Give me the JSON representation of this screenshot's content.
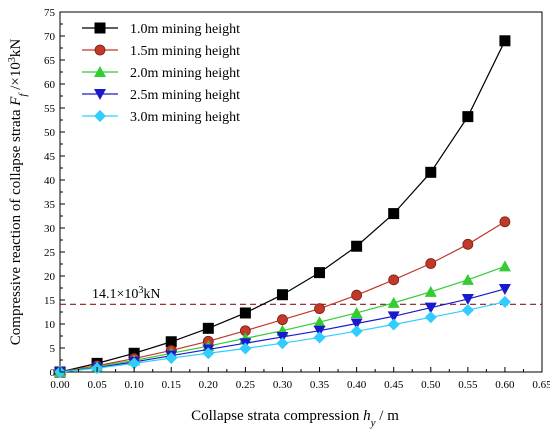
{
  "chart_data": {
    "type": "line",
    "xlabel": {
      "prefix": "Collapse strata compression ",
      "sym": "h",
      "sub": "y",
      "suffix": " / m"
    },
    "ylabel": {
      "prefix": "Compressive reaction of collapse strata ",
      "sym": "F",
      "sub": "f",
      "suffix": " /×10",
      "sup": "3",
      "tail": "kN"
    },
    "xlim": [
      0,
      0.65
    ],
    "ylim": [
      0,
      75
    ],
    "xticks": [
      "0.00",
      "0.05",
      "0.10",
      "0.15",
      "0.20",
      "0.25",
      "0.30",
      "0.35",
      "0.40",
      "0.45",
      "0.50",
      "0.55",
      "0.60",
      "0.65"
    ],
    "xtick_values": [
      0,
      0.05,
      0.1,
      0.15,
      0.2,
      0.25,
      0.3,
      0.35,
      0.4,
      0.45,
      0.5,
      0.55,
      0.6,
      0.65
    ],
    "yticks": [
      "0",
      "5",
      "10",
      "15",
      "20",
      "25",
      "30",
      "35",
      "40",
      "45",
      "50",
      "55",
      "60",
      "65",
      "70",
      "75"
    ],
    "ytick_values": [
      0,
      5,
      10,
      15,
      20,
      25,
      30,
      35,
      40,
      45,
      50,
      55,
      60,
      65,
      70,
      75
    ],
    "grid": false,
    "legend_position": "top-left",
    "x": [
      0,
      0.05,
      0.1,
      0.15,
      0.2,
      0.25,
      0.3,
      0.35,
      0.4,
      0.45,
      0.5,
      0.55,
      0.6
    ],
    "series": [
      {
        "name": "1.0m mining height",
        "color": "#000000",
        "marker": "square",
        "values": [
          0,
          1.8,
          3.9,
          6.3,
          9.1,
          12.3,
          16.1,
          20.7,
          26.2,
          33.0,
          41.6,
          53.2,
          69.0
        ]
      },
      {
        "name": "1.5m mining height",
        "color": "#c0392b",
        "marker": "circle",
        "values": [
          0,
          1.3,
          2.8,
          4.5,
          6.4,
          8.6,
          10.9,
          13.2,
          16.0,
          19.2,
          22.6,
          26.6,
          31.3
        ]
      },
      {
        "name": "2.0m mining height",
        "color": "#33cc33",
        "marker": "triangle-up",
        "values": [
          0,
          1.1,
          2.4,
          3.9,
          5.4,
          7.0,
          8.6,
          10.4,
          12.3,
          14.4,
          16.7,
          19.2,
          22.0
        ]
      },
      {
        "name": "2.5m mining height",
        "color": "#1a1acc",
        "marker": "triangle-down",
        "values": [
          0,
          0.9,
          2.1,
          3.4,
          4.7,
          6.0,
          7.3,
          8.6,
          10.1,
          11.6,
          13.4,
          15.2,
          17.3
        ]
      },
      {
        "name": "3.0m mining height",
        "color": "#33ccff",
        "marker": "diamond",
        "values": [
          0,
          0.8,
          1.8,
          2.9,
          3.9,
          4.9,
          6.0,
          7.2,
          8.5,
          9.9,
          11.4,
          12.9,
          14.6
        ]
      }
    ],
    "reference_line": {
      "y": 14.1,
      "label": "14.1×10",
      "label_sup": "3",
      "label_tail": "kN",
      "color": "#8b1a1a"
    }
  }
}
